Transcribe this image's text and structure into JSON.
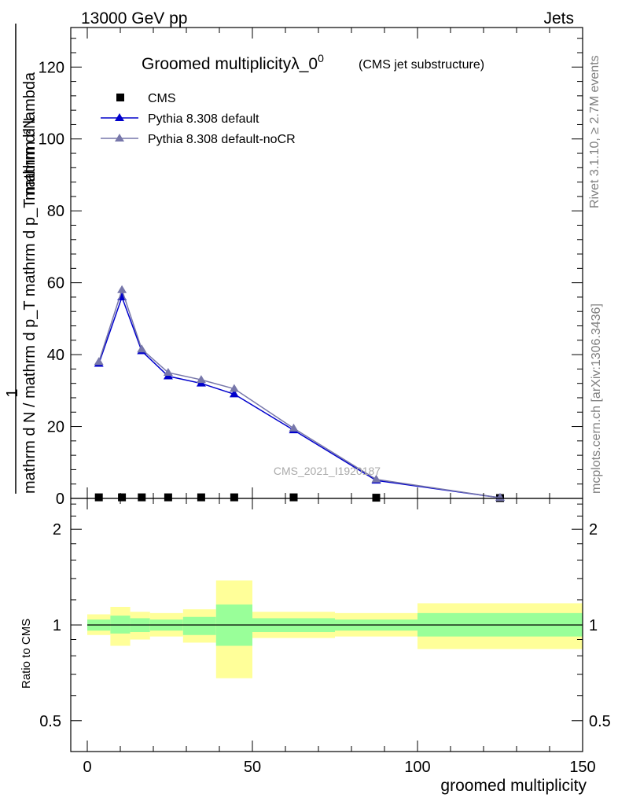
{
  "header": {
    "energy_label": "13000 GeV pp",
    "category_label": "Jets"
  },
  "side_labels": {
    "rivet": "Rivet 3.1.10, ≥ 2.7M events",
    "mcplots": "mcplots.cern.ch [arXiv:1306.3436]"
  },
  "chart_data": [
    {
      "type": "line",
      "title": "Groomed multiplicityλ_0",
      "title_superscript": "0",
      "subtitle": "(CMS jet substructure)",
      "ylabel_top": "mathrm d²N",
      "ylabel_bottom": "mathrm d N / mathrm d p_T mathrm d p_T mathrm d lambda",
      "ylabel_prefix": "1",
      "watermark": "CMS_2021_I1920187",
      "xlim": [
        -5,
        150
      ],
      "ylim": [
        0,
        131
      ],
      "yticks": [
        0,
        20,
        40,
        60,
        80,
        100,
        120
      ],
      "legend_placement": "top-left",
      "series": [
        {
          "name": "CMS",
          "marker": "square",
          "color": "#000000",
          "x": [
            3.5,
            10.5,
            16.5,
            24.5,
            34.5,
            44.5,
            62.5,
            87.5,
            125
          ],
          "y": [
            0.3,
            0.3,
            0.3,
            0.3,
            0.3,
            0.3,
            0.3,
            0.2,
            0.1
          ]
        },
        {
          "name": "Pythia 8.308 default",
          "marker": "triangle",
          "color": "#0000cc",
          "x": [
            3.5,
            10.5,
            16.5,
            24.5,
            34.5,
            44.5,
            62.5,
            87.5,
            125
          ],
          "y": [
            37.5,
            56,
            41,
            34,
            32,
            29,
            19,
            5,
            0.2
          ]
        },
        {
          "name": "Pythia 8.308 default-noCR",
          "marker": "triangle",
          "color": "#7777aa",
          "x": [
            3.5,
            10.5,
            16.5,
            24.5,
            34.5,
            44.5,
            62.5,
            87.5,
            125
          ],
          "y": [
            38,
            58,
            41.5,
            35,
            33,
            30.5,
            19.5,
            5.3,
            0.2
          ]
        }
      ]
    },
    {
      "type": "area",
      "ylabel": "Ratio to CMS",
      "xlabel": "groomed multiplicity",
      "xlim": [
        -5,
        150
      ],
      "ylim": [
        0.4,
        2.5
      ],
      "log_y": true,
      "yticks": [
        0.5,
        1,
        2
      ],
      "xticks": [
        0,
        50,
        100,
        150
      ],
      "bins": [
        {
          "lo": 0,
          "hi": 7,
          "stat_lo": 0.96,
          "stat_hi": 1.04,
          "tot_lo": 0.93,
          "tot_hi": 1.08
        },
        {
          "lo": 7,
          "hi": 13,
          "stat_lo": 0.94,
          "stat_hi": 1.07,
          "tot_lo": 0.86,
          "tot_hi": 1.14
        },
        {
          "lo": 13,
          "hi": 19,
          "stat_lo": 0.95,
          "stat_hi": 1.05,
          "tot_lo": 0.9,
          "tot_hi": 1.1
        },
        {
          "lo": 19,
          "hi": 29,
          "stat_lo": 0.96,
          "stat_hi": 1.04,
          "tot_lo": 0.92,
          "tot_hi": 1.09
        },
        {
          "lo": 29,
          "hi": 39,
          "stat_lo": 0.93,
          "stat_hi": 1.06,
          "tot_lo": 0.88,
          "tot_hi": 1.12
        },
        {
          "lo": 39,
          "hi": 50,
          "stat_lo": 0.86,
          "stat_hi": 1.16,
          "tot_lo": 0.68,
          "tot_hi": 1.38
        },
        {
          "lo": 50,
          "hi": 75,
          "stat_lo": 0.95,
          "stat_hi": 1.05,
          "tot_lo": 0.91,
          "tot_hi": 1.1
        },
        {
          "lo": 75,
          "hi": 100,
          "stat_lo": 0.96,
          "stat_hi": 1.04,
          "tot_lo": 0.92,
          "tot_hi": 1.09
        },
        {
          "lo": 100,
          "hi": 150,
          "stat_lo": 0.92,
          "stat_hi": 1.09,
          "tot_lo": 0.84,
          "tot_hi": 1.17
        }
      ]
    }
  ],
  "colors": {
    "stat_band": "#99ff99",
    "total_band": "#ffff99"
  }
}
